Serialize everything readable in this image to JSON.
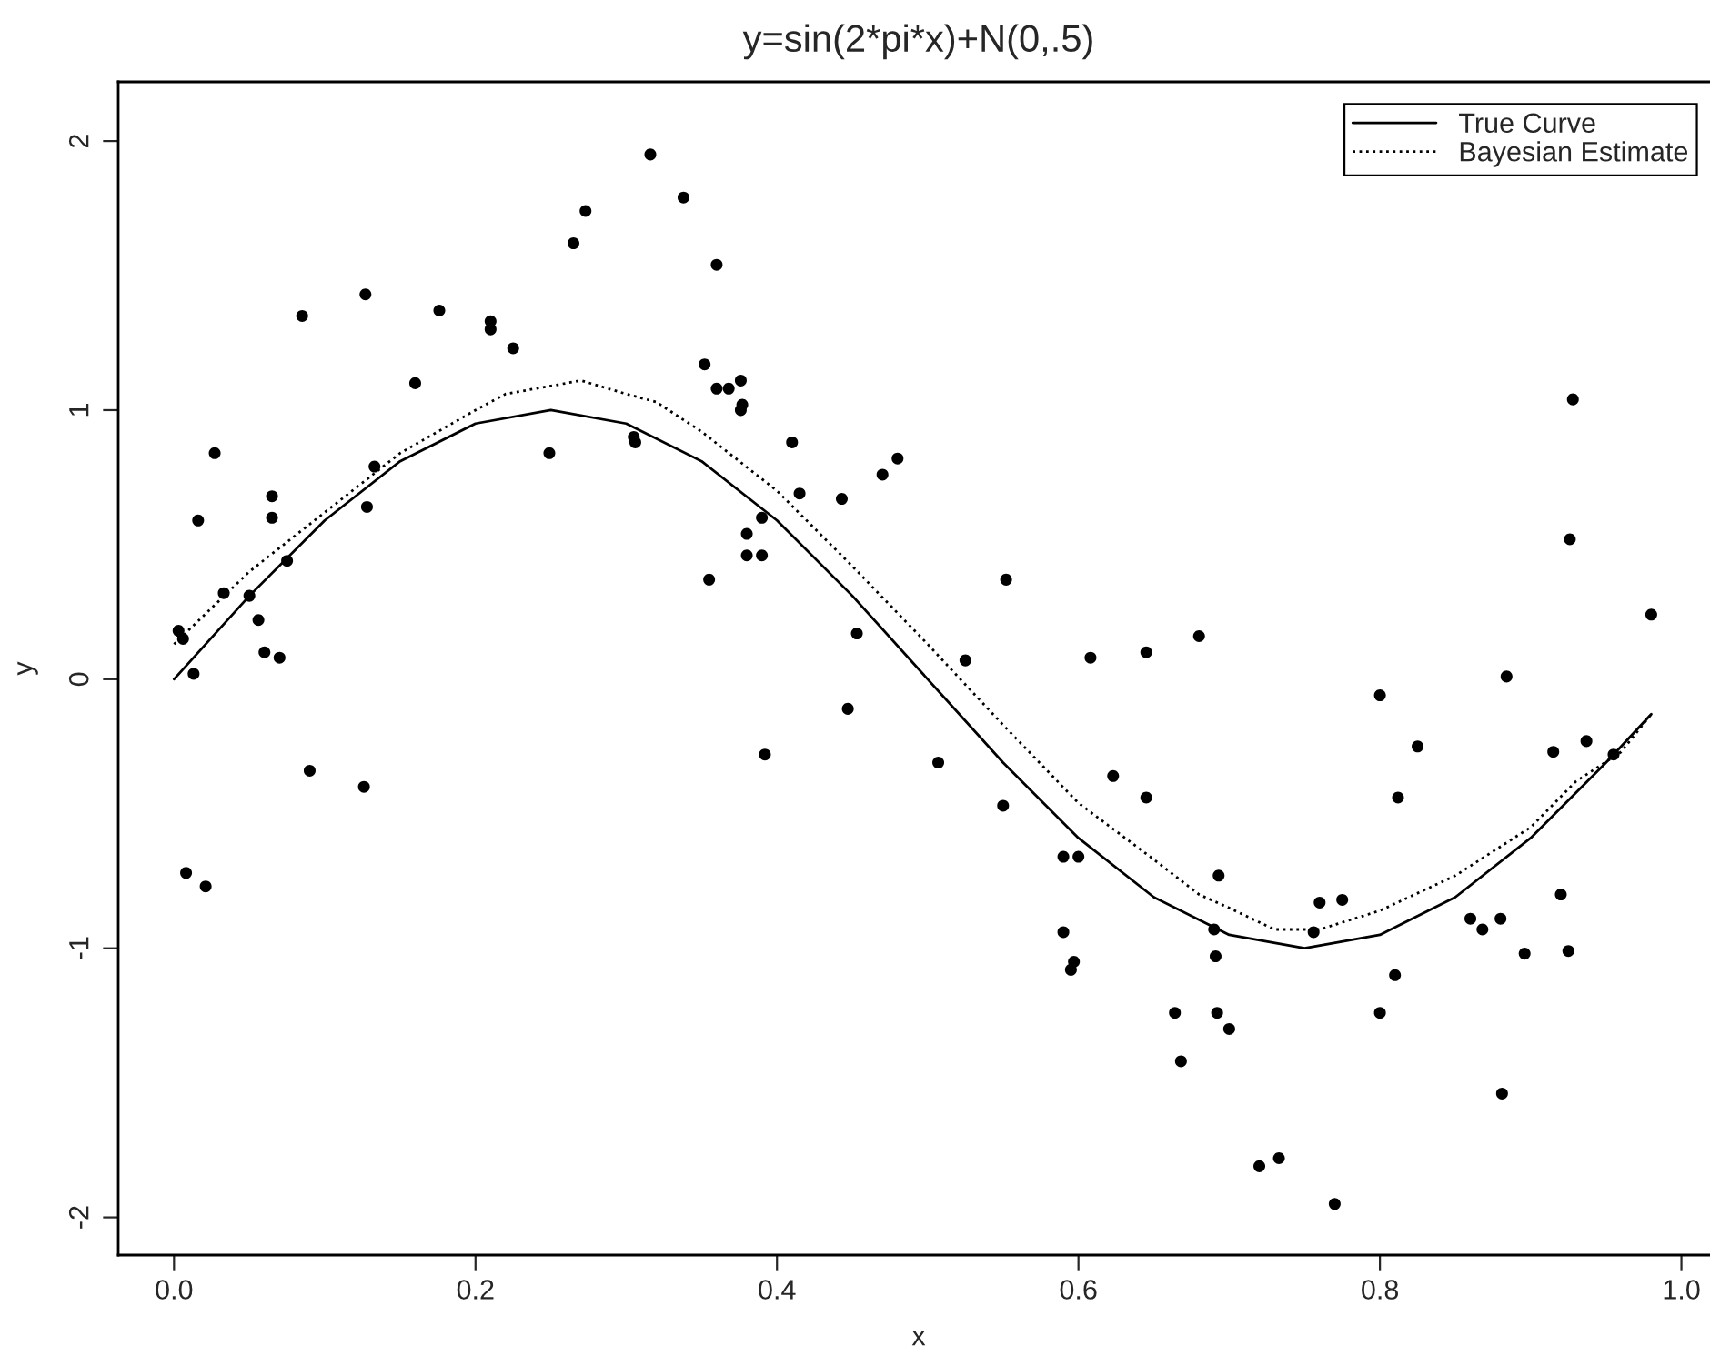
{
  "chart_data": {
    "type": "scatter",
    "title": "y=sin(2*pi*x)+N(0,.5)",
    "xlabel": "x",
    "ylabel": "y",
    "xlim": [
      -0.037,
      1.025
    ],
    "ylim": [
      -2.14,
      2.22
    ],
    "xticks": [
      {
        "value": 0,
        "label": "0.0"
      },
      {
        "value": 0.2,
        "label": "0.2"
      },
      {
        "value": 0.4,
        "label": "0.4"
      },
      {
        "value": 0.6,
        "label": "0.6"
      },
      {
        "value": 0.8,
        "label": "0.8"
      },
      {
        "value": 1.0,
        "label": "1.0"
      }
    ],
    "yticks": [
      -2,
      -1,
      0,
      1,
      2
    ],
    "grid": false,
    "legend": "top right",
    "series": [
      {
        "marker": "circle",
        "color": "#000000",
        "x": [
          0.003,
          0.006,
          0.008,
          0.013,
          0.016,
          0.021,
          0.027,
          0.033,
          0.05,
          0.056,
          0.06,
          0.065,
          0.065,
          0.07,
          0.075,
          0.085,
          0.09,
          0.127,
          0.128,
          0.126,
          0.133,
          0.16,
          0.176,
          0.21,
          0.21,
          0.225,
          0.249,
          0.265,
          0.273,
          0.305,
          0.306,
          0.316,
          0.338,
          0.352,
          0.355,
          0.36,
          0.36,
          0.368,
          0.376,
          0.376,
          0.377,
          0.38,
          0.38,
          0.39,
          0.39,
          0.392,
          0.41,
          0.415,
          0.443,
          0.447,
          0.453,
          0.47,
          0.48,
          0.507,
          0.525,
          0.55,
          0.552,
          0.59,
          0.59,
          0.595,
          0.597,
          0.6,
          0.608,
          0.623,
          0.645,
          0.645,
          0.664,
          0.668,
          0.68,
          0.69,
          0.691,
          0.692,
          0.693,
          0.7,
          0.72,
          0.733,
          0.756,
          0.76,
          0.77,
          0.775,
          0.8,
          0.8,
          0.81,
          0.812,
          0.825,
          0.86,
          0.868,
          0.88,
          0.881,
          0.884,
          0.896,
          0.915,
          0.92,
          0.925,
          0.926,
          0.928,
          0.937,
          0.955,
          0.98
        ],
        "values": [
          0.18,
          0.15,
          -0.72,
          0.02,
          0.59,
          -0.77,
          0.84,
          0.32,
          0.31,
          0.22,
          0.1,
          0.68,
          0.6,
          0.08,
          0.44,
          1.35,
          -0.34,
          1.43,
          0.64,
          -0.4,
          0.79,
          1.1,
          1.37,
          1.33,
          1.3,
          1.23,
          0.84,
          1.62,
          1.74,
          0.9,
          0.88,
          1.95,
          1.79,
          1.17,
          0.37,
          1.54,
          1.08,
          1.08,
          1.11,
          1.0,
          1.02,
          0.54,
          0.46,
          0.46,
          0.6,
          -0.28,
          0.88,
          0.69,
          0.67,
          -0.11,
          0.17,
          0.76,
          0.82,
          -0.31,
          0.07,
          -0.47,
          0.37,
          -0.94,
          -0.66,
          -1.08,
          -1.05,
          -0.66,
          0.08,
          -0.36,
          -0.44,
          0.1,
          -1.24,
          -1.42,
          0.16,
          -0.93,
          -1.03,
          -1.24,
          -0.73,
          -1.3,
          -1.81,
          -1.78,
          -0.94,
          -0.83,
          -1.95,
          -0.82,
          -0.06,
          -1.24,
          -1.1,
          -0.44,
          -0.25,
          -0.89,
          -0.93,
          -0.89,
          -1.54,
          0.01,
          -1.02,
          -0.27,
          -0.8,
          -1.01,
          0.52,
          1.04,
          -0.23,
          -0.28,
          0.24
        ]
      },
      {
        "type": "line",
        "name": "True Curve",
        "color": "#000000",
        "line_style": "solid",
        "x": [
          0.0,
          0.05,
          0.1,
          0.15,
          0.2,
          0.25,
          0.3,
          0.35,
          0.4,
          0.45,
          0.5,
          0.55,
          0.6,
          0.65,
          0.7,
          0.75,
          0.8,
          0.85,
          0.9,
          0.95,
          0.98
        ],
        "values": [
          0.0,
          0.31,
          0.59,
          0.81,
          0.95,
          1.0,
          0.95,
          0.81,
          0.59,
          0.31,
          0.0,
          -0.31,
          -0.59,
          -0.81,
          -0.95,
          -1.0,
          -0.95,
          -0.81,
          -0.59,
          -0.31,
          -0.13
        ]
      },
      {
        "type": "line",
        "name": "Bayesian Estimate",
        "color": "#000000",
        "line_style": "dotted",
        "x": [
          0.0,
          0.05,
          0.1,
          0.15,
          0.2,
          0.22,
          0.25,
          0.27,
          0.3,
          0.32,
          0.35,
          0.4,
          0.45,
          0.5,
          0.55,
          0.6,
          0.65,
          0.68,
          0.7,
          0.73,
          0.76,
          0.8,
          0.85,
          0.9,
          0.93,
          0.96,
          0.98
        ],
        "values": [
          0.13,
          0.4,
          0.62,
          0.84,
          1.0,
          1.06,
          1.09,
          1.11,
          1.06,
          1.03,
          0.92,
          0.7,
          0.42,
          0.13,
          -0.17,
          -0.46,
          -0.67,
          -0.8,
          -0.85,
          -0.93,
          -0.93,
          -0.86,
          -0.73,
          -0.55,
          -0.38,
          -0.27,
          -0.13
        ]
      }
    ]
  }
}
